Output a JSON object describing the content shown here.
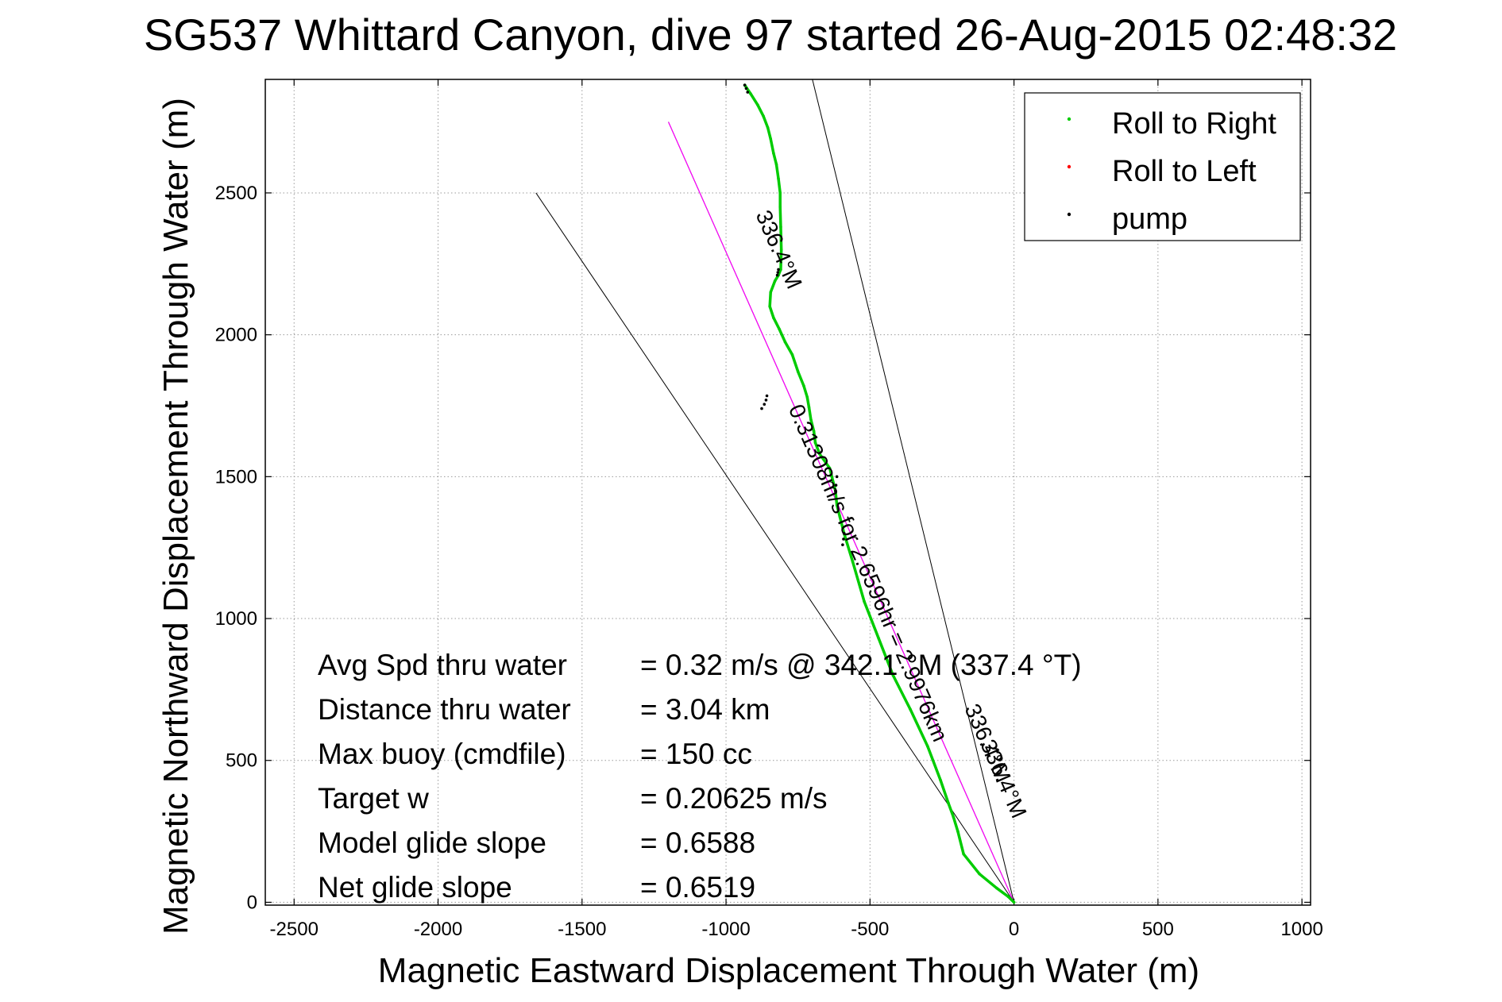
{
  "chart_data": {
    "type": "scatter",
    "title": "SG537 Whittard Canyon, dive 97 started 26-Aug-2015 02:48:32",
    "xlabel": "Magnetic Eastward Displacement Through Water (m)",
    "ylabel": "Magnetic Northward Displacement Through Water (m)",
    "xlim": [
      -2600,
      1030
    ],
    "ylim": [
      -10,
      2900
    ],
    "xticks": [
      -2500,
      -2000,
      -1500,
      -1000,
      -500,
      0,
      500,
      1000
    ],
    "yticks": [
      0,
      500,
      1000,
      1500,
      2000,
      2500
    ],
    "xtick_labels": [
      "-2500",
      "-2000",
      "-1500",
      "-1000",
      "-500",
      "0",
      "500",
      "1000"
    ],
    "ytick_labels": [
      "0",
      "500",
      "1000",
      "1500",
      "2000",
      "2500"
    ],
    "grid": true,
    "legend_position": "top-right",
    "legend": [
      "Roll to Right",
      "Roll to Left",
      "pump"
    ],
    "series": [
      {
        "name": "Roll to Right",
        "color": "#00cc00",
        "x": [
          0,
          -20,
          -60,
          -120,
          -175,
          -195,
          -210,
          -228,
          -255,
          -300,
          -360,
          -420,
          -470,
          -520,
          -560,
          -590,
          -605,
          -615,
          -620,
          -640,
          -675,
          -690,
          -695,
          -705,
          -712,
          -718,
          -730,
          -750,
          -770,
          -795,
          -815,
          -835,
          -848,
          -845,
          -830,
          -818,
          -810,
          -808,
          -810,
          -812,
          -812,
          -818,
          -825,
          -835,
          -845,
          -855,
          -870,
          -890,
          -915,
          -935
        ],
        "y": [
          0,
          20,
          50,
          100,
          170,
          250,
          300,
          350,
          430,
          550,
          680,
          800,
          930,
          1060,
          1200,
          1300,
          1360,
          1400,
          1450,
          1530,
          1580,
          1620,
          1660,
          1700,
          1745,
          1780,
          1820,
          1870,
          1930,
          1975,
          2020,
          2060,
          2100,
          2150,
          2190,
          2210,
          2230,
          2300,
          2380,
          2450,
          2500,
          2550,
          2600,
          2640,
          2690,
          2730,
          2770,
          2810,
          2850,
          2880
        ]
      },
      {
        "name": "Roll to Left",
        "color": "#ff0000",
        "x": [],
        "y": []
      },
      {
        "name": "pump",
        "color": "#000000",
        "x": [
          -935,
          -930,
          -925,
          -858,
          -861,
          -867,
          -876,
          -615,
          -618,
          -620,
          -590,
          -592,
          -595,
          -818,
          -820,
          -822
        ],
        "y": [
          2880,
          2868,
          2855,
          1785,
          1770,
          1755,
          1740,
          1500,
          1470,
          1450,
          1300,
          1280,
          1260,
          2230,
          2220,
          2210
        ]
      }
    ],
    "reference_lines": [
      {
        "color": "#000000",
        "x": [
          0,
          -1660
        ],
        "y": [
          0,
          2500
        ]
      },
      {
        "color": "#000000",
        "x": [
          0,
          -700
        ],
        "y": [
          0,
          2900
        ]
      },
      {
        "color": "#000000",
        "x": [
          0,
          -1200
        ],
        "y": [
          0,
          2750
        ]
      },
      {
        "color": "#ff00ff",
        "x": [
          0,
          -1200
        ],
        "y": [
          0,
          2750
        ]
      }
    ],
    "annotations": [
      {
        "text": "336.4°M",
        "x": -840,
        "y": 2290,
        "angle": 66.4
      },
      {
        "text": "0.31308m/s for 2.6596hr = 2.9976km",
        "x": -530,
        "y": 1150,
        "angle": 66.4
      },
      {
        "text": "336.4°M",
        "x": -115,
        "y": 550,
        "angle": 66.4
      },
      {
        "text": "336.4°M",
        "x": -60,
        "y": 425,
        "angle": 66.4
      }
    ],
    "stats": [
      {
        "label": "Avg Spd thru water",
        "value": "=  0.32 m/s @ 342.1 °M (337.4 °T)"
      },
      {
        "label": "Distance thru water",
        "value": "=  3.04 km"
      },
      {
        "label": "Max buoy (cmdfile)",
        "value": "= 150 cc"
      },
      {
        "label": "Target w",
        "value": "= 0.20625 m/s"
      },
      {
        "label": "Model glide slope",
        "value": "= 0.6588"
      },
      {
        "label": "Net glide slope",
        "value": "= 0.6519"
      }
    ]
  }
}
